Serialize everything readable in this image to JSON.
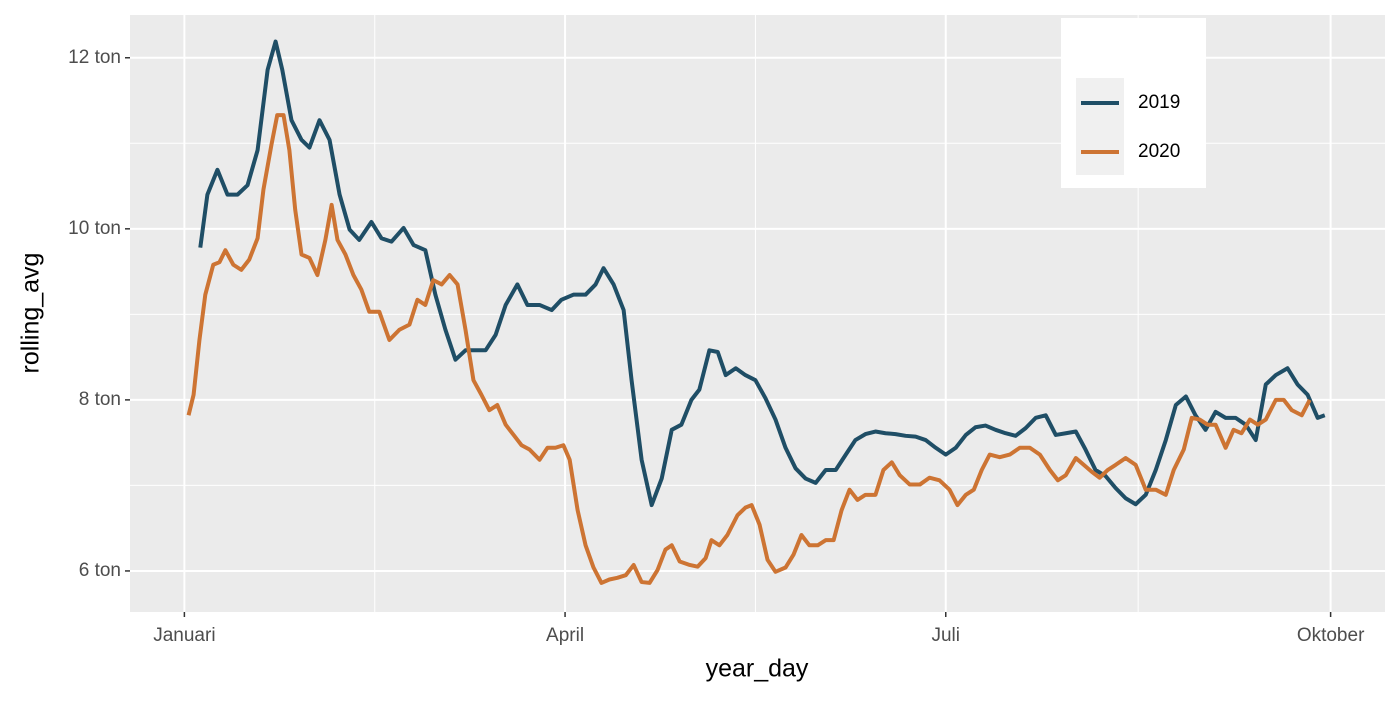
{
  "chart_data": {
    "type": "line",
    "x_label": "year_day",
    "y_label": "rolling_avg",
    "xlim": [
      -13,
      287
    ],
    "ylim": [
      5.52,
      12.5
    ],
    "xticks": [
      {
        "value": 0,
        "label": "Januari"
      },
      {
        "value": 91,
        "label": "April"
      },
      {
        "value": 182,
        "label": "Juli"
      },
      {
        "value": 274,
        "label": "Oktober"
      }
    ],
    "yticks": [
      {
        "value": 6,
        "label": "6 ton"
      },
      {
        "value": 8,
        "label": "8 ton"
      },
      {
        "value": 10,
        "label": "10 ton"
      },
      {
        "value": 12,
        "label": "12 ton"
      }
    ],
    "grid": true,
    "minor_grid": true,
    "legend_position": "top-right",
    "series": [
      {
        "name": "2019",
        "color": "#1f4e66",
        "x": [
          3.8,
          5.5,
          7.9,
          10.3,
          12.7,
          15.1,
          17.5,
          19.9,
          21.8,
          23.4,
          25.6,
          28.0,
          29.9,
          32.3,
          34.7,
          37.1,
          39.5,
          41.8,
          44.7,
          47.1,
          49.5,
          52.4,
          54.8,
          57.6,
          60.0,
          62.4,
          64.8,
          67.2,
          69.6,
          72.0,
          74.4,
          76.8,
          79.6,
          82.0,
          84.9,
          87.8,
          90.1,
          93.0,
          95.9,
          98.3,
          100.2,
          102.6,
          105.0,
          106.9,
          109.3,
          111.7,
          114.1,
          116.5,
          118.8,
          121.2,
          123.1,
          125.5,
          127.5,
          129.4,
          131.8,
          134.1,
          136.5,
          138.9,
          141.3,
          143.7,
          146.1,
          148.5,
          150.9,
          153.3,
          155.7,
          158.1,
          160.4,
          162.8,
          165.2,
          167.6,
          170.0,
          172.4,
          174.8,
          177.2,
          179.6,
          182.0,
          184.4,
          186.8,
          189.1,
          191.5,
          193.9,
          196.3,
          198.7,
          201.1,
          203.5,
          205.9,
          208.3,
          210.7,
          213.1,
          215.4,
          217.8,
          220.2,
          222.6,
          225.0,
          227.4,
          229.8,
          232.2,
          234.6,
          237.0,
          239.4,
          241.7,
          244.1,
          246.5,
          248.9,
          251.3,
          253.7,
          256.1,
          258.5,
          260.9,
          263.7,
          266.1,
          268.5,
          270.9,
          272.6
        ],
        "values": [
          9.78,
          10.4,
          10.69,
          10.4,
          10.4,
          10.51,
          10.92,
          11.86,
          12.19,
          11.86,
          11.27,
          11.04,
          10.95,
          11.27,
          11.04,
          10.4,
          9.99,
          9.87,
          10.08,
          9.89,
          9.85,
          10.01,
          9.81,
          9.75,
          9.23,
          8.82,
          8.47,
          8.58,
          8.58,
          8.58,
          8.76,
          9.11,
          9.35,
          9.11,
          9.11,
          9.05,
          9.17,
          9.23,
          9.23,
          9.35,
          9.54,
          9.35,
          9.05,
          8.23,
          7.3,
          6.77,
          7.08,
          7.65,
          7.71,
          8.0,
          8.12,
          8.58,
          8.56,
          8.29,
          8.37,
          8.29,
          8.23,
          8.02,
          7.77,
          7.44,
          7.2,
          7.08,
          7.03,
          7.18,
          7.18,
          7.36,
          7.53,
          7.6,
          7.63,
          7.61,
          7.6,
          7.58,
          7.57,
          7.53,
          7.44,
          7.36,
          7.44,
          7.59,
          7.68,
          7.7,
          7.65,
          7.61,
          7.58,
          7.67,
          7.79,
          7.82,
          7.59,
          7.61,
          7.63,
          7.42,
          7.18,
          7.11,
          6.97,
          6.85,
          6.78,
          6.89,
          7.18,
          7.53,
          7.94,
          8.04,
          7.82,
          7.65,
          7.86,
          7.79,
          7.79,
          7.71,
          7.53,
          8.18,
          8.29,
          8.37,
          8.18,
          8.06,
          7.79,
          7.82
        ]
      },
      {
        "name": "2020",
        "color": "#cd7433",
        "x": [
          1.0,
          2.2,
          3.6,
          5.0,
          6.9,
          8.4,
          9.8,
          11.7,
          13.6,
          15.5,
          17.5,
          18.9,
          20.8,
          22.2,
          23.7,
          25.1,
          26.5,
          28.0,
          29.9,
          31.8,
          33.7,
          35.2,
          36.6,
          38.5,
          40.4,
          42.3,
          44.2,
          46.6,
          49.0,
          51.4,
          53.8,
          55.7,
          57.6,
          59.5,
          61.5,
          63.4,
          65.3,
          67.2,
          69.1,
          71.0,
          72.9,
          74.8,
          76.8,
          78.7,
          80.6,
          82.5,
          84.9,
          86.8,
          88.7,
          90.6,
          92.1,
          94.0,
          95.9,
          97.8,
          99.7,
          101.6,
          103.5,
          105.5,
          107.4,
          109.3,
          111.2,
          113.1,
          115.0,
          116.5,
          118.4,
          120.8,
          122.7,
          124.6,
          126.0,
          127.9,
          129.8,
          132.2,
          134.1,
          135.6,
          137.5,
          139.4,
          141.3,
          143.7,
          145.6,
          147.5,
          149.4,
          151.4,
          153.3,
          155.2,
          157.1,
          159.0,
          160.9,
          162.8,
          165.2,
          167.1,
          169.1,
          171.0,
          173.4,
          175.8,
          178.1,
          180.5,
          182.9,
          184.8,
          186.8,
          188.7,
          190.6,
          192.5,
          194.9,
          197.3,
          199.7,
          202.1,
          204.5,
          206.9,
          208.8,
          210.7,
          213.1,
          215.0,
          216.9,
          218.8,
          220.7,
          222.6,
          225.0,
          227.4,
          229.8,
          232.2,
          234.6,
          236.5,
          238.9,
          240.8,
          242.7,
          244.6,
          246.5,
          248.9,
          250.8,
          252.7,
          254.7,
          256.6,
          258.5,
          260.9,
          262.8,
          264.7,
          267.1,
          269.0
        ],
        "values": [
          7.82,
          8.06,
          8.7,
          9.23,
          9.58,
          9.61,
          9.75,
          9.58,
          9.52,
          9.64,
          9.89,
          10.46,
          10.98,
          11.33,
          11.33,
          10.92,
          10.22,
          9.7,
          9.66,
          9.46,
          9.87,
          10.28,
          9.87,
          9.7,
          9.46,
          9.29,
          9.03,
          9.03,
          8.7,
          8.82,
          8.88,
          9.17,
          9.11,
          9.4,
          9.35,
          9.46,
          9.35,
          8.82,
          8.23,
          8.06,
          7.88,
          7.94,
          7.71,
          7.59,
          7.47,
          7.42,
          7.3,
          7.44,
          7.44,
          7.47,
          7.3,
          6.71,
          6.3,
          6.04,
          5.86,
          5.9,
          5.92,
          5.95,
          6.07,
          5.87,
          5.86,
          6.01,
          6.25,
          6.3,
          6.11,
          6.07,
          6.05,
          6.15,
          6.36,
          6.3,
          6.42,
          6.65,
          6.74,
          6.77,
          6.54,
          6.13,
          5.99,
          6.04,
          6.19,
          6.42,
          6.3,
          6.3,
          6.36,
          6.36,
          6.71,
          6.95,
          6.83,
          6.89,
          6.89,
          7.18,
          7.27,
          7.12,
          7.01,
          7.01,
          7.09,
          7.06,
          6.95,
          6.77,
          6.89,
          6.95,
          7.18,
          7.36,
          7.33,
          7.36,
          7.44,
          7.44,
          7.36,
          7.18,
          7.06,
          7.12,
          7.32,
          7.24,
          7.16,
          7.09,
          7.18,
          7.24,
          7.32,
          7.24,
          6.95,
          6.95,
          6.89,
          7.18,
          7.42,
          7.79,
          7.77,
          7.71,
          7.71,
          7.44,
          7.65,
          7.61,
          7.77,
          7.71,
          7.77,
          8.0,
          8.0,
          7.88,
          7.82,
          8.0
        ]
      }
    ]
  }
}
